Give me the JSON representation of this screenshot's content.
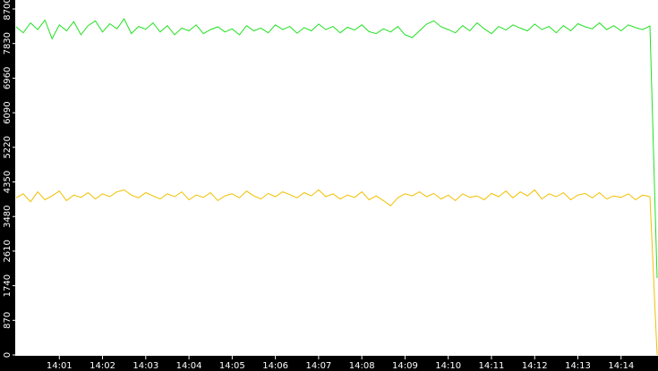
{
  "chart_data": {
    "type": "line",
    "categories": [
      null,
      null,
      null,
      null,
      null,
      null,
      "14:01",
      null,
      null,
      null,
      null,
      null,
      "14:02",
      null,
      null,
      null,
      null,
      null,
      "14:03",
      null,
      null,
      null,
      null,
      null,
      "14:04",
      null,
      null,
      null,
      null,
      null,
      "14:05",
      null,
      null,
      null,
      null,
      null,
      "14:06",
      null,
      null,
      null,
      null,
      null,
      "14:07",
      null,
      null,
      null,
      null,
      null,
      "14:08",
      null,
      null,
      null,
      null,
      null,
      "14:09",
      null,
      null,
      null,
      null,
      null,
      "14:10",
      null,
      null,
      null,
      null,
      null,
      "14:11",
      null,
      null,
      null,
      null,
      null,
      "14:12",
      null,
      null,
      null,
      null,
      null,
      "14:13",
      null,
      null,
      null,
      null,
      null,
      "14:14",
      null,
      null,
      null,
      null,
      null
    ],
    "series": [
      {
        "color": "#22e022",
        "values": [
          8250,
          8100,
          8350,
          8180,
          8420,
          7950,
          8300,
          8150,
          8380,
          8050,
          8280,
          8400,
          8120,
          8330,
          8200,
          8450,
          8080,
          8260,
          8190,
          8350,
          8120,
          8280,
          8050,
          8220,
          8150,
          8300,
          8080,
          8180,
          8250,
          8120,
          8200,
          8050,
          8280,
          8150,
          8220,
          8100,
          8300,
          8180,
          8260,
          8090,
          8230,
          8150,
          8320,
          8180,
          8260,
          8100,
          8240,
          8170,
          8300,
          8130,
          8080,
          8200,
          8120,
          8260,
          8050,
          7980,
          8150,
          8320,
          8400,
          8250,
          8180,
          8100,
          8280,
          8150,
          8350,
          8200,
          8080,
          8260,
          8170,
          8300,
          8220,
          8150,
          8320,
          8180,
          8260,
          8100,
          8280,
          8150,
          8330,
          8250,
          8200,
          8350,
          8180,
          8280,
          8150,
          8300,
          8230,
          8180,
          8270,
          1930
        ]
      },
      {
        "color": "#f0c000",
        "values": [
          3950,
          4050,
          3850,
          4100,
          3900,
          4000,
          4120,
          3880,
          4020,
          3960,
          4080,
          3920,
          4050,
          3980,
          4100,
          4150,
          4020,
          3950,
          4080,
          4000,
          3920,
          4050,
          3980,
          4100,
          3900,
          4020,
          3960,
          4080,
          3880,
          4000,
          4050,
          3950,
          4120,
          4000,
          3920,
          4060,
          3980,
          4100,
          4030,
          3950,
          4080,
          4000,
          4150,
          3980,
          4050,
          3920,
          4020,
          3960,
          4100,
          3900,
          4000,
          3880,
          3750,
          3950,
          4050,
          4000,
          4100,
          3980,
          4060,
          3920,
          4020,
          3880,
          4050,
          3960,
          4000,
          3900,
          4060,
          3980,
          4120,
          3950,
          4100,
          4000,
          4150,
          3920,
          4050,
          3980,
          4080,
          3900,
          4020,
          4060,
          3950,
          4080,
          3920,
          4000,
          3960,
          4050,
          3900,
          4020,
          3980,
          0
        ]
      }
    ],
    "ylim": [
      0,
      8700
    ],
    "yticks": [
      0,
      870,
      1740,
      2610,
      3480,
      4350,
      5220,
      6090,
      6960,
      7830,
      8700
    ]
  }
}
